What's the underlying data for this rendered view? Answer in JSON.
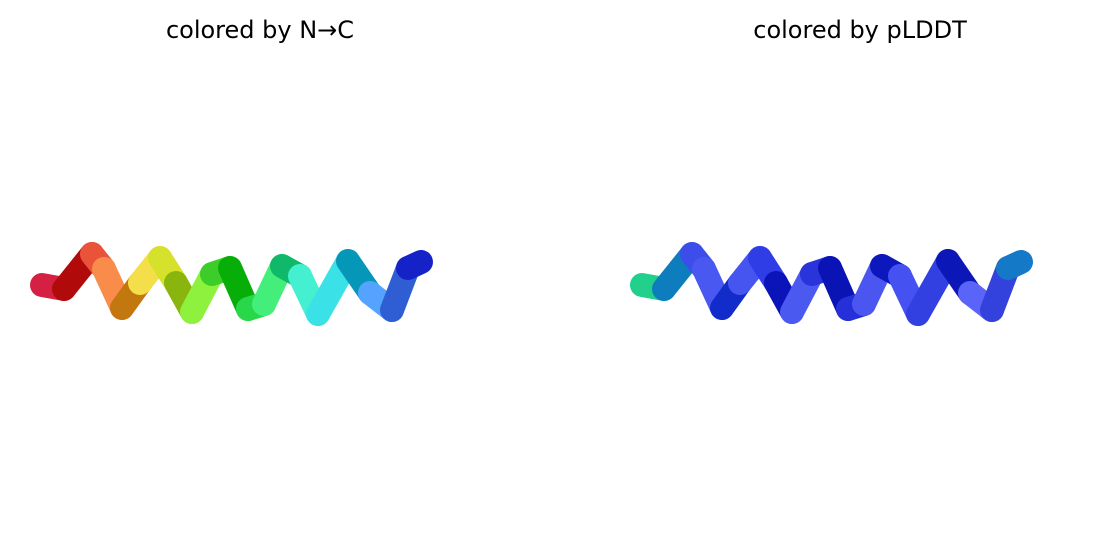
{
  "panels": [
    {
      "title": "colored by N→C",
      "segments": [
        "#d42043",
        "#b10a0a",
        "#e9533a",
        "#f98c4b",
        "#c3770f",
        "#f4df4a",
        "#d6e12b",
        "#8ab50f",
        "#8ef13e",
        "#3ccd2a",
        "#08ae08",
        "#28d848",
        "#44ee7a",
        "#10b96a",
        "#44f0cf",
        "#3ae1e6",
        "#0497b8",
        "#54a3ff",
        "#2e5dd4",
        "#1522c8"
      ]
    },
    {
      "title": "colored by pLDDT",
      "segments": [
        "#20d08b",
        "#0d7dbe",
        "#3c4dea",
        "#4958f0",
        "#122ccb",
        "#4655f0",
        "#2f3de6",
        "#0a14b8",
        "#4a5af0",
        "#2934da",
        "#0a14b5",
        "#2630d8",
        "#4a56ef",
        "#0c18bc",
        "#4551f0",
        "#3240e2",
        "#0c17b8",
        "#5a64f8",
        "#3442dd",
        "#1479c6"
      ]
    }
  ]
}
